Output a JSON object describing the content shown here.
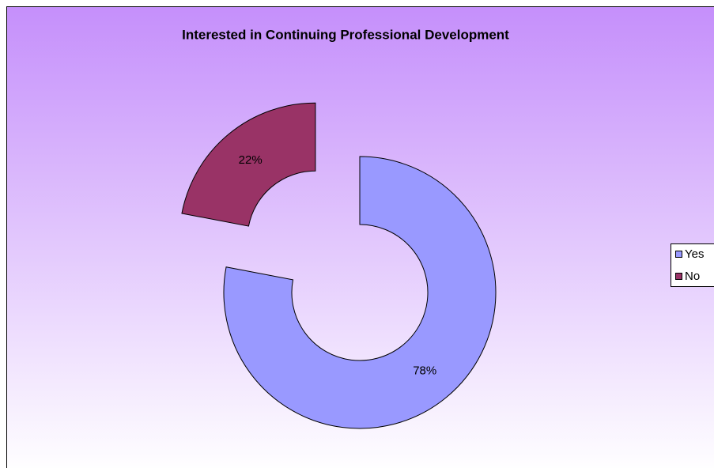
{
  "chart_data": {
    "type": "doughnut",
    "title": "Interested in Continuing Professional Development",
    "categories": [
      "Yes",
      "No"
    ],
    "values": [
      78,
      22
    ],
    "value_labels": [
      "78%",
      "22%"
    ],
    "colors": [
      "#9999ff",
      "#993366"
    ],
    "legend": "right"
  }
}
